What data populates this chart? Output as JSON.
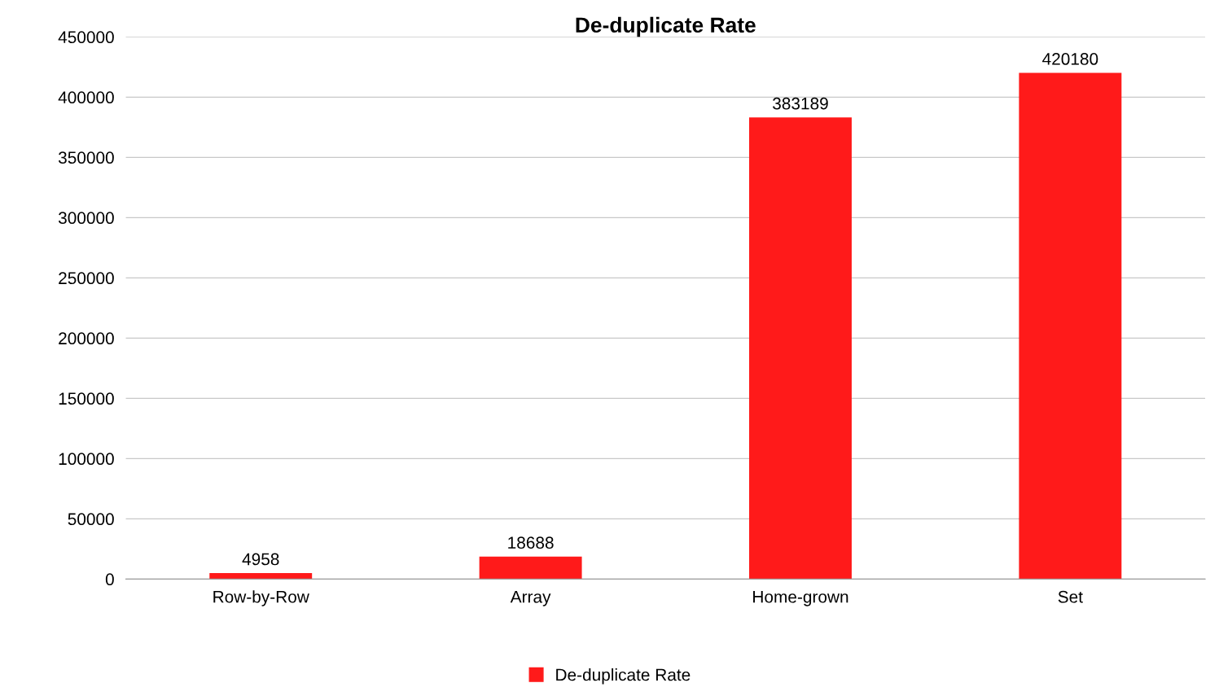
{
  "chart_data": {
    "type": "bar",
    "title": "De-duplicate Rate",
    "categories": [
      "Row-by-Row",
      "Array",
      "Home-grown",
      "Set"
    ],
    "series": [
      {
        "name": "De-duplicate Rate",
        "color": "#ff1a1a",
        "values": [
          4958,
          18688,
          383189,
          420180
        ]
      }
    ],
    "ylim": [
      0,
      450000
    ],
    "yticks": [
      0,
      50000,
      100000,
      150000,
      200000,
      250000,
      300000,
      350000,
      400000,
      450000
    ],
    "grid": "y",
    "legend": "bottom",
    "data_labels": true
  }
}
